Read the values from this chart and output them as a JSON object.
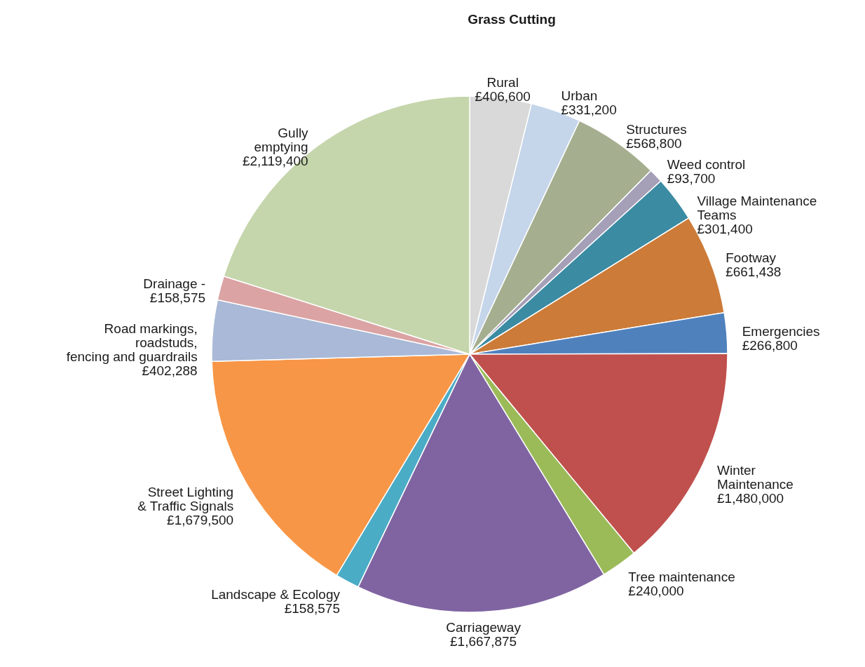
{
  "chart_data": {
    "type": "pie",
    "categories": [
      "Rural",
      "Urban",
      "Structures",
      "Weed control",
      "Village Maintenance\nTeams",
      "Footway",
      "Emergencies",
      "Winter\nMaintenance",
      "Tree maintenance",
      "Carriageway",
      "Landscape & Ecology",
      "Street Lighting\n& Traffic Signals",
      "Road markings,\nroadstuds,\nfencing and guardrails",
      "Drainage -",
      "Gully\nemptying"
    ],
    "values": [
      406600,
      331200,
      568800,
      93700,
      301400,
      661438,
      266800,
      1480000,
      240000,
      1667875,
      158575,
      1679500,
      402288,
      158575,
      2119400
    ],
    "value_labels": [
      "£406,600",
      "£331,200",
      "£568,800",
      "£93,700",
      "£301,400",
      "£661,438",
      "£266,800",
      "£1,480,000",
      "£240,000",
      "£1,667,875",
      "£158,575",
      "£1,679,500",
      "£402,288",
      "£158,575",
      "£2,119,400"
    ],
    "colors": [
      "#d9d9d9",
      "#c5d5ea",
      "#a5ae8f",
      "#a59fb8",
      "#3b8ba3",
      "#cc7b38",
      "#4f81bd",
      "#c0504d",
      "#9bbb59",
      "#8064a2",
      "#4bacc6",
      "#f79646",
      "#a9b9d7",
      "#dba3a3",
      "#c6d6ac"
    ],
    "annotations": [
      "Grass Cutting"
    ]
  }
}
